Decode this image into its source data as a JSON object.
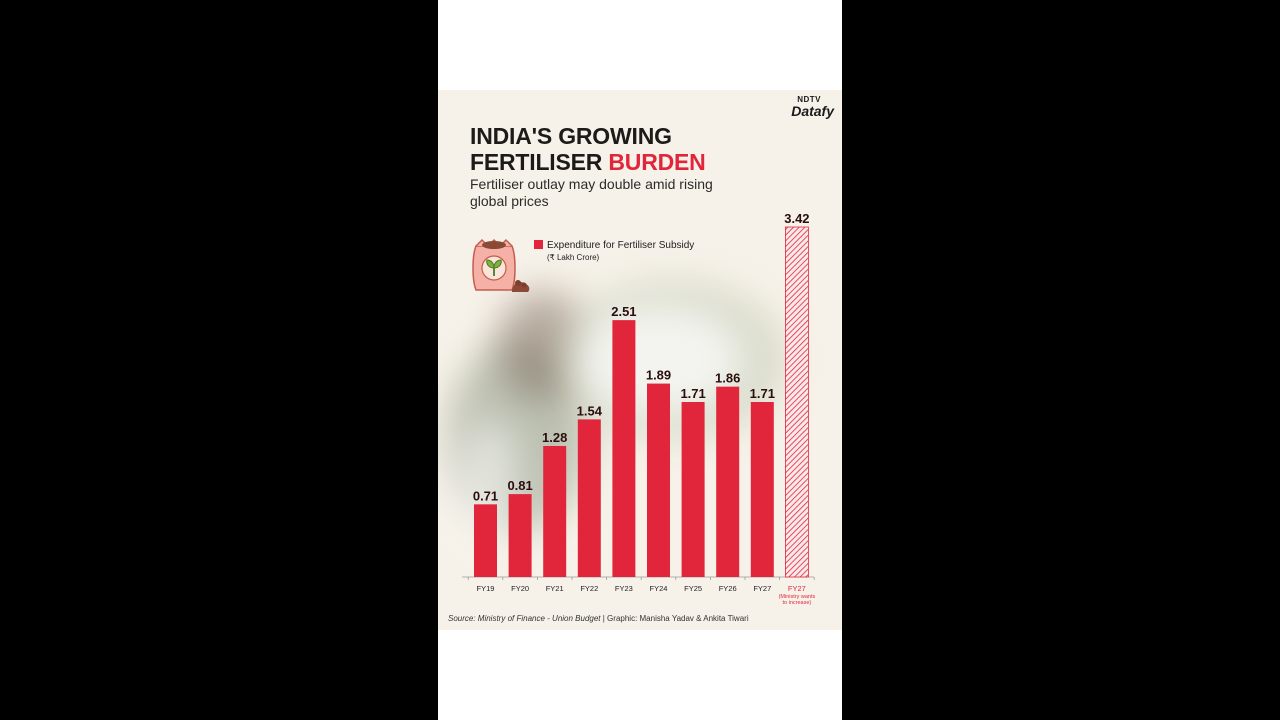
{
  "brand": {
    "line1": "NDTV",
    "line2": "Datafy"
  },
  "title_line1": "INDIA'S GROWING",
  "title_line2_plain": "FERTILISER ",
  "title_line2_accent": "BURDEN",
  "subtitle": "Fertiliser outlay may double amid rising global prices",
  "legend": {
    "label": "Expenditure for Fertiliser Subsidy",
    "unit": "(₹ Lakh Crore)"
  },
  "footer": {
    "source": "Source: Ministry of Finance - Union Budget",
    "credit": "| Graphic: Manisha Yadav & Ankita Tiwari"
  },
  "colors": {
    "bar": "#e1263b",
    "label": "#2a0e0e",
    "accent": "#e1263b",
    "background": "#f7f2e9"
  },
  "chart_data": {
    "type": "bar",
    "title": "INDIA'S GROWING FERTILISER BURDEN",
    "subtitle": "Fertiliser outlay may double amid rising global prices",
    "categories": [
      "FY19",
      "FY20",
      "FY21",
      "FY22",
      "FY23",
      "FY24",
      "FY25",
      "FY26",
      "FY27",
      "FY27"
    ],
    "category_notes": [
      "",
      "",
      "",
      "",
      "",
      "",
      "",
      "",
      "",
      "(Ministry wants to increase)"
    ],
    "series": [
      {
        "name": "Expenditure for Fertiliser Subsidy",
        "values": [
          0.71,
          0.81,
          1.28,
          1.54,
          2.51,
          1.89,
          1.71,
          1.86,
          1.71,
          3.42
        ]
      }
    ],
    "value_labels": [
      "0.71",
      "0.81",
      "1.28",
      "1.54",
      "2.51",
      "1.89",
      "1.71",
      "1.86",
      "1.71",
      "3.42"
    ],
    "hatched": [
      false,
      false,
      false,
      false,
      false,
      false,
      false,
      false,
      false,
      true
    ],
    "unit": "(₹ Lakh Crore)",
    "ylim": [
      0,
      3.42
    ],
    "grid": false,
    "legend_position": "top-left"
  }
}
